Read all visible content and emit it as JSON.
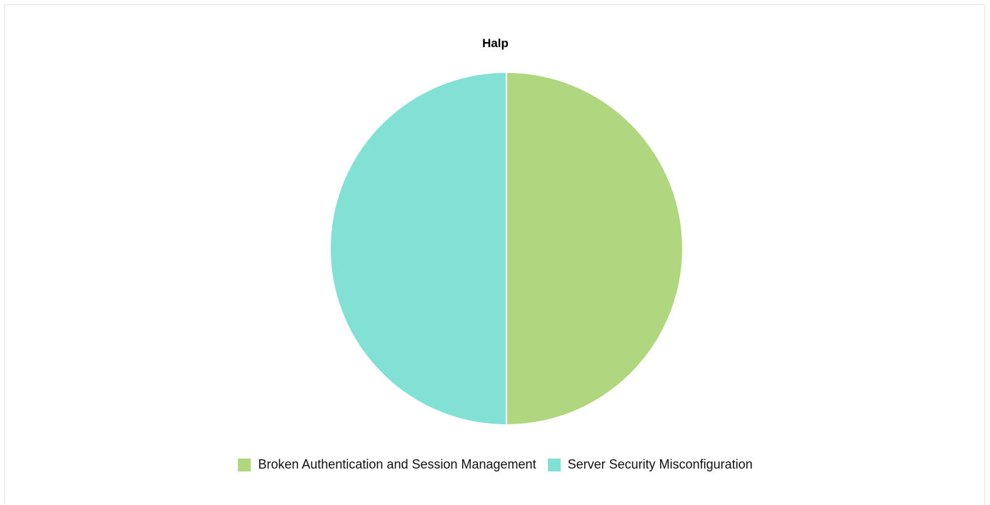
{
  "chart_data": {
    "type": "pie",
    "title": "Halp",
    "slices": [
      {
        "label": "Broken Authentication and Session Management",
        "value": 50,
        "color": "#b0d77f"
      },
      {
        "label": "Server Security Misconfiguration",
        "value": 50,
        "color": "#82e0d4"
      }
    ],
    "legend_position": "bottom"
  }
}
